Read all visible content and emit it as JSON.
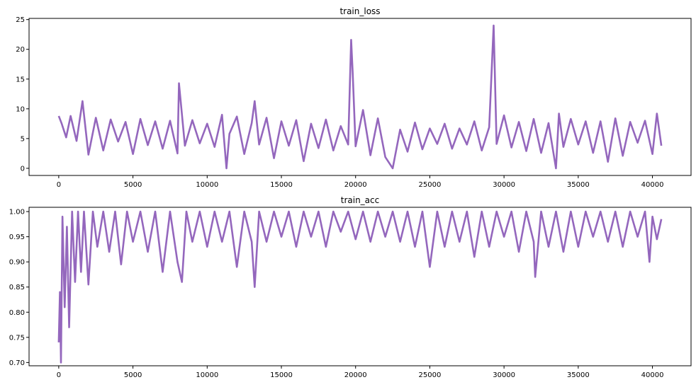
{
  "chart_data": [
    {
      "type": "line",
      "title": "train_loss",
      "xlabel": "",
      "ylabel": "",
      "xlim": [
        -2000,
        42600
      ],
      "ylim": [
        -1.2,
        25.2
      ],
      "xticks": [
        0,
        5000,
        10000,
        15000,
        20000,
        25000,
        30000,
        35000,
        40000
      ],
      "xtick_labels": [
        "0",
        "5000",
        "10000",
        "15000",
        "20000",
        "25000",
        "30000",
        "35000",
        "40000"
      ],
      "yticks": [
        0,
        5,
        10,
        15,
        20,
        25
      ],
      "ytick_labels": [
        "0",
        "5",
        "10",
        "15",
        "20",
        "25"
      ],
      "grid": false,
      "line_color": "#9467bd",
      "x": [
        0,
        200,
        500,
        800,
        1200,
        1600,
        2000,
        2500,
        3000,
        3500,
        4000,
        4500,
        5000,
        5500,
        6000,
        6500,
        7000,
        7500,
        8000,
        8100,
        8500,
        9000,
        9500,
        10000,
        10500,
        11000,
        11300,
        11500,
        12000,
        12500,
        13000,
        13200,
        13500,
        14000,
        14500,
        15000,
        15500,
        16000,
        16500,
        17000,
        17500,
        18000,
        18500,
        19000,
        19500,
        19700,
        19800,
        20000,
        20500,
        21000,
        21500,
        22000,
        22500,
        23000,
        23500,
        24000,
        24500,
        25000,
        25500,
        26000,
        26500,
        27000,
        27500,
        28000,
        28500,
        29000,
        29300,
        29500,
        30000,
        30500,
        31000,
        31500,
        32000,
        32500,
        33000,
        33500,
        33700,
        34000,
        34500,
        35000,
        35500,
        36000,
        36500,
        37000,
        37500,
        38000,
        38500,
        39000,
        39500,
        40000,
        40300,
        40600
      ],
      "values": [
        8.8,
        7.5,
        5.2,
        8.8,
        4.6,
        11.3,
        2.3,
        8.5,
        3.0,
        8.2,
        4.5,
        7.8,
        2.4,
        8.3,
        3.9,
        7.9,
        3.3,
        8.0,
        2.5,
        14.3,
        3.8,
        8.1,
        4.2,
        7.5,
        3.6,
        9.0,
        0.0,
        5.8,
        8.7,
        2.4,
        7.6,
        11.3,
        4.0,
        8.5,
        1.7,
        7.9,
        3.8,
        8.1,
        1.2,
        7.5,
        3.4,
        8.2,
        3.0,
        7.1,
        4.0,
        21.6,
        16.3,
        3.7,
        9.8,
        2.2,
        8.4,
        1.9,
        0.0,
        6.5,
        2.8,
        7.7,
        3.2,
        6.7,
        4.1,
        7.5,
        3.3,
        6.7,
        4.0,
        7.9,
        3.0,
        6.9,
        24.0,
        4.1,
        8.9,
        3.5,
        7.8,
        2.9,
        8.3,
        2.6,
        7.6,
        0.0,
        9.2,
        3.6,
        8.3,
        4.0,
        7.9,
        2.6,
        7.9,
        1.1,
        8.4,
        2.1,
        7.8,
        4.3,
        8.0,
        2.4,
        9.2,
        3.8
      ]
    },
    {
      "type": "line",
      "title": "train_acc",
      "xlabel": "",
      "ylabel": "",
      "xlim": [
        -2000,
        42600
      ],
      "ylim": [
        0.6935,
        1.0085
      ],
      "xticks": [
        0,
        5000,
        10000,
        15000,
        20000,
        25000,
        30000,
        35000,
        40000
      ],
      "xtick_labels": [
        "0",
        "5000",
        "10000",
        "15000",
        "20000",
        "25000",
        "30000",
        "35000",
        "40000"
      ],
      "yticks": [
        0.7,
        0.75,
        0.8,
        0.85,
        0.9,
        0.95,
        1.0
      ],
      "ytick_labels": [
        "0.70",
        "0.75",
        "0.80",
        "0.85",
        "0.90",
        "0.95",
        "1.00"
      ],
      "grid": false,
      "line_color": "#9467bd",
      "x": [
        0,
        80,
        150,
        250,
        400,
        550,
        700,
        900,
        1100,
        1300,
        1500,
        1700,
        2000,
        2300,
        2600,
        3000,
        3400,
        3800,
        4200,
        4600,
        5000,
        5500,
        6000,
        6500,
        7000,
        7500,
        8000,
        8300,
        8600,
        9000,
        9500,
        10000,
        10500,
        11000,
        11500,
        12000,
        12500,
        13000,
        13200,
        13500,
        14000,
        14500,
        15000,
        15500,
        16000,
        16500,
        17000,
        17500,
        18000,
        18500,
        19000,
        19500,
        20000,
        20500,
        21000,
        21500,
        22000,
        22500,
        23000,
        23500,
        24000,
        24500,
        25000,
        25500,
        26000,
        26500,
        27000,
        27500,
        28000,
        28500,
        29000,
        29500,
        30000,
        30500,
        31000,
        31500,
        32000,
        32100,
        32500,
        33000,
        33500,
        34000,
        34500,
        35000,
        35500,
        36000,
        36500,
        37000,
        37500,
        38000,
        38500,
        39000,
        39500,
        39800,
        40000,
        40300,
        40600
      ],
      "values": [
        0.74,
        0.84,
        0.7,
        0.99,
        0.81,
        0.97,
        0.77,
        1.0,
        0.86,
        1.0,
        0.88,
        1.0,
        0.855,
        1.0,
        0.93,
        1.0,
        0.92,
        1.0,
        0.895,
        1.0,
        0.94,
        1.0,
        0.92,
        1.0,
        0.88,
        1.0,
        0.9,
        0.86,
        1.0,
        0.94,
        1.0,
        0.93,
        1.0,
        0.94,
        1.0,
        0.89,
        1.0,
        0.94,
        0.85,
        1.0,
        0.94,
        1.0,
        0.95,
        1.0,
        0.93,
        1.0,
        0.95,
        1.0,
        0.93,
        1.0,
        0.96,
        1.0,
        0.945,
        1.0,
        0.94,
        1.0,
        0.95,
        1.0,
        0.94,
        1.0,
        0.93,
        1.0,
        0.89,
        1.0,
        0.93,
        1.0,
        0.94,
        1.0,
        0.91,
        1.0,
        0.93,
        1.0,
        0.95,
        1.0,
        0.92,
        1.0,
        0.94,
        0.87,
        1.0,
        0.93,
        1.0,
        0.92,
        1.0,
        0.93,
        1.0,
        0.95,
        1.0,
        0.94,
        1.0,
        0.93,
        1.0,
        0.95,
        1.0,
        0.9,
        0.99,
        0.945,
        0.985
      ]
    }
  ]
}
